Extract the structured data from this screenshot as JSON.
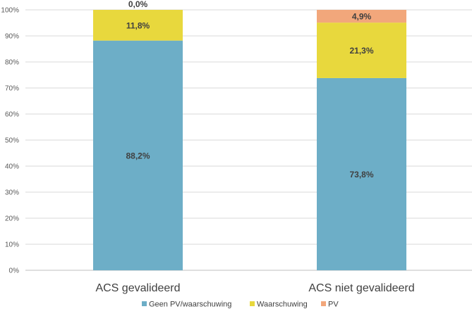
{
  "chart_data": {
    "type": "bar",
    "stacked": true,
    "categories": [
      "ACS gevalideerd",
      "ACS niet gevalideerd"
    ],
    "series": [
      {
        "name": "Geen PV/waarschuwing",
        "color": "#6DAEC7",
        "values": [
          88.2,
          73.8
        ],
        "labels": [
          "88,2%",
          "73,8%"
        ]
      },
      {
        "name": "Waarschuwing",
        "color": "#E8D83D",
        "values": [
          11.8,
          21.3
        ],
        "labels": [
          "11,8%",
          "21,3%"
        ]
      },
      {
        "name": "PV",
        "color": "#F2A77B",
        "values": [
          0.0,
          4.9
        ],
        "labels": [
          "0,0%",
          "4,9%"
        ]
      }
    ],
    "ylim": [
      0,
      100
    ],
    "y_ticks": [
      0,
      10,
      20,
      30,
      40,
      50,
      60,
      70,
      80,
      90,
      100
    ],
    "y_tick_labels": [
      "0%",
      "10%",
      "20%",
      "30%",
      "40%",
      "50%",
      "60%",
      "70%",
      "80%",
      "90%",
      "100%"
    ],
    "grid": true,
    "legend": "bottom",
    "title": "",
    "xlabel": "",
    "ylabel": ""
  }
}
